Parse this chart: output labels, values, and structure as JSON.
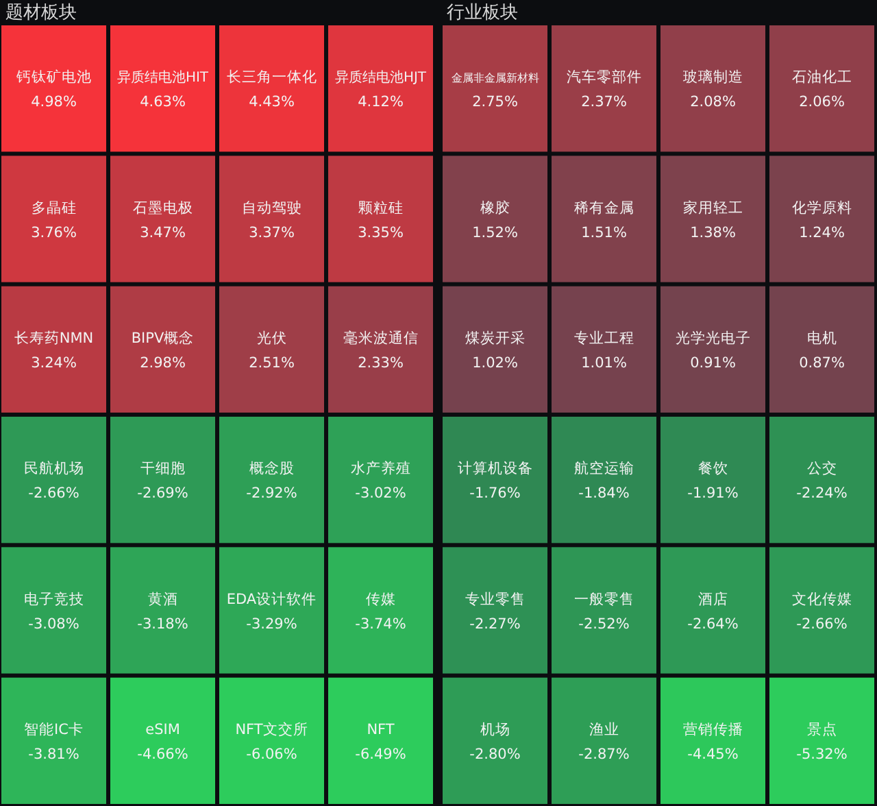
{
  "chart_data": [
    {
      "type": "other",
      "title": "题材板块",
      "categories": [
        "钙钛矿电池",
        "异质结电池HIT",
        "长三角一体化",
        "异质结电池HJT",
        "多晶硅",
        "石墨电极",
        "自动驾驶",
        "颗粒硅",
        "长寿药NMN",
        "BIPV概念",
        "光伏",
        "毫米波通信",
        "民航机场",
        "干细胞",
        "概念股",
        "水产养殖",
        "电子竞技",
        "黄酒",
        "EDA设计软件",
        "传媒",
        "智能IC卡",
        "eSIM",
        "NFT文交所",
        "NFT"
      ],
      "values": [
        4.98,
        4.63,
        4.43,
        4.12,
        3.76,
        3.47,
        3.37,
        3.35,
        3.24,
        2.98,
        2.51,
        2.33,
        -2.66,
        -2.69,
        -2.92,
        -3.02,
        -3.08,
        -3.18,
        -3.29,
        -3.74,
        -3.81,
        -4.66,
        -6.06,
        -6.49
      ],
      "value_labels": [
        "4.98%",
        "4.63%",
        "4.43%",
        "4.12%",
        "3.76%",
        "3.47%",
        "3.37%",
        "3.35%",
        "3.24%",
        "2.98%",
        "2.51%",
        "2.33%",
        "-2.66%",
        "-2.69%",
        "-2.92%",
        "-3.02%",
        "-3.08%",
        "-3.18%",
        "-3.29%",
        "-3.74%",
        "-3.81%",
        "-4.66%",
        "-6.06%",
        "-6.49%"
      ]
    },
    {
      "type": "other",
      "title": "行业板块",
      "categories": [
        "金属非金属新材料",
        "汽车零部件",
        "玻璃制造",
        "石油化工",
        "橡胶",
        "稀有金属",
        "家用轻工",
        "化学原料",
        "煤炭开采",
        "专业工程",
        "光学光电子",
        "电机",
        "计算机设备",
        "航空运输",
        "餐饮",
        "公交",
        "专业零售",
        "一般零售",
        "酒店",
        "文化传媒",
        "机场",
        "渔业",
        "营销传播",
        "景点"
      ],
      "values": [
        2.75,
        2.37,
        2.08,
        2.06,
        1.52,
        1.51,
        1.38,
        1.24,
        1.02,
        1.01,
        0.91,
        0.87,
        -1.76,
        -1.84,
        -1.91,
        -2.24,
        -2.27,
        -2.52,
        -2.64,
        -2.66,
        -2.8,
        -2.87,
        -4.45,
        -5.32
      ],
      "value_labels": [
        "2.75%",
        "2.37%",
        "2.08%",
        "2.06%",
        "1.52%",
        "1.51%",
        "1.38%",
        "1.24%",
        "1.02%",
        "1.01%",
        "0.91%",
        "0.87%",
        "-1.76%",
        "-1.84%",
        "-1.91%",
        "-2.24%",
        "-2.27%",
        "-2.52%",
        "-2.64%",
        "-2.66%",
        "-2.80%",
        "-2.87%",
        "-4.45%",
        "-5.32%"
      ]
    }
  ]
}
